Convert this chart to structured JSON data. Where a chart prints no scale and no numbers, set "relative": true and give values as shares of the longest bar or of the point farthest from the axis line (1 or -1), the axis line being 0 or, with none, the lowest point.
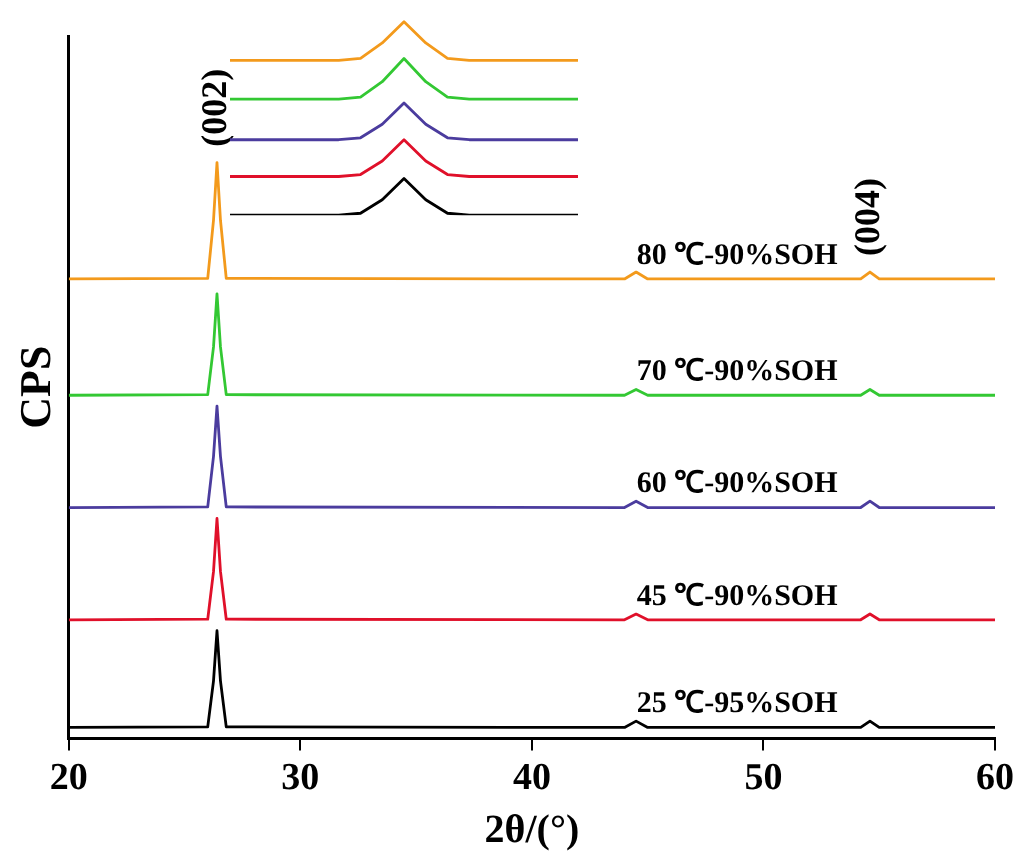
{
  "chart_data": [
    {
      "type": "line",
      "xlabel": "2θ/(°)",
      "ylabel": "CPS",
      "relative": true,
      "xlim": [
        20,
        60
      ],
      "xticks": [
        20,
        30,
        40,
        50,
        60
      ],
      "grid": false,
      "legend": false,
      "marker": "none",
      "line_style": "solid",
      "annotations": [
        {
          "text": "(002)",
          "x": 26.4,
          "y": 1.0
        },
        {
          "text": "(004)",
          "x": 54.6,
          "y": 0.81
        }
      ],
      "series": [
        {
          "name": "25 ℃-95%SOH",
          "color": "#000000",
          "x": [
            20,
            26.0,
            26.25,
            26.4,
            26.55,
            26.8,
            44.0,
            44.5,
            45.0,
            54.2,
            54.6,
            55.0,
            60
          ],
          "values": [
            0.019,
            0.02,
            0.1,
            0.187,
            0.1,
            0.02,
            0.019,
            0.03,
            0.019,
            0.019,
            0.03,
            0.019,
            0.019
          ]
        },
        {
          "name": "45 ℃-90%SOH",
          "color": "#e0102a",
          "x": [
            20,
            26.0,
            26.25,
            26.4,
            26.55,
            26.8,
            44.0,
            44.5,
            45.0,
            54.2,
            54.6,
            55.0,
            60
          ],
          "values": [
            0.206,
            0.207,
            0.29,
            0.382,
            0.29,
            0.207,
            0.206,
            0.216,
            0.206,
            0.206,
            0.216,
            0.206,
            0.206
          ]
        },
        {
          "name": "60 ℃-90%SOH",
          "color": "#4b3c9e",
          "x": [
            20,
            26.0,
            26.25,
            26.4,
            26.55,
            26.8,
            44.0,
            44.5,
            45.0,
            54.2,
            54.6,
            55.0,
            60
          ],
          "values": [
            0.401,
            0.402,
            0.49,
            0.577,
            0.49,
            0.402,
            0.401,
            0.412,
            0.401,
            0.401,
            0.412,
            0.401,
            0.401
          ]
        },
        {
          "name": "70 ℃-90%SOH",
          "color": "#33c833",
          "x": [
            20,
            26.0,
            26.25,
            26.4,
            26.55,
            26.8,
            44.0,
            44.5,
            45.0,
            54.2,
            54.6,
            55.0,
            60
          ],
          "values": [
            0.596,
            0.597,
            0.68,
            0.772,
            0.68,
            0.597,
            0.596,
            0.606,
            0.596,
            0.596,
            0.606,
            0.596,
            0.596
          ]
        },
        {
          "name": "80 ℃-90%SOH",
          "color": "#f39a1c",
          "x": [
            20,
            26.0,
            26.25,
            26.4,
            26.55,
            26.8,
            44.0,
            44.5,
            45.0,
            54.2,
            54.6,
            55.0,
            60
          ],
          "values": [
            0.798,
            0.799,
            0.9,
            1.0,
            0.9,
            0.799,
            0.798,
            0.81,
            0.798,
            0.798,
            0.81,
            0.798,
            0.798
          ]
        }
      ]
    },
    {
      "type": "line",
      "relative": true,
      "categories": [
        null,
        null,
        null,
        null,
        null,
        null,
        null,
        null,
        null,
        null,
        null,
        null,
        null,
        null,
        null,
        null,
        null
      ],
      "legend": false,
      "marker": "none",
      "line_style": "solid",
      "series": [
        {
          "color": "#000000",
          "values": [
            0,
            0,
            0,
            0,
            0,
            0,
            0.01,
            0.08,
            0.19,
            0.08,
            0.01,
            0,
            0,
            0,
            0,
            0,
            0
          ]
        },
        {
          "color": "#e0102a",
          "values": [
            0.2,
            0.2,
            0.2,
            0.2,
            0.2,
            0.2,
            0.21,
            0.28,
            0.39,
            0.28,
            0.21,
            0.2,
            0.2,
            0.2,
            0.2,
            0.2,
            0.2
          ]
        },
        {
          "color": "#4b3c9e",
          "values": [
            0.39,
            0.39,
            0.39,
            0.39,
            0.39,
            0.39,
            0.4,
            0.47,
            0.58,
            0.47,
            0.4,
            0.39,
            0.39,
            0.39,
            0.39,
            0.39,
            0.39
          ]
        },
        {
          "color": "#33c833",
          "values": [
            0.6,
            0.6,
            0.6,
            0.6,
            0.6,
            0.6,
            0.61,
            0.69,
            0.81,
            0.69,
            0.61,
            0.6,
            0.6,
            0.6,
            0.6,
            0.6,
            0.6
          ]
        },
        {
          "color": "#f39a1c",
          "values": [
            0.8,
            0.8,
            0.8,
            0.8,
            0.8,
            0.8,
            0.81,
            0.89,
            1.0,
            0.89,
            0.81,
            0.8,
            0.8,
            0.8,
            0.8,
            0.8,
            0.8
          ]
        }
      ]
    }
  ]
}
